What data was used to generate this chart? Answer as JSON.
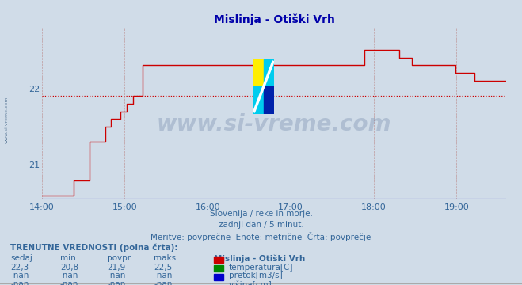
{
  "title": "Mislinja - Otiški Vrh",
  "bg_color": "#d0dce8",
  "plot_bg_color": "#d0dce8",
  "line_color": "#cc0000",
  "avg_line_color": "#cc0000",
  "xaxis_color": "#0000bb",
  "grid_color": "#bb8888",
  "text_color": "#336699",
  "title_color": "#0000aa",
  "ylabel_values": [
    21,
    22
  ],
  "avg_value": 21.9,
  "ymin": 20.55,
  "ymax": 22.78,
  "xmin": 0,
  "xmax": 336,
  "xtick_positions": [
    0,
    60,
    120,
    180,
    240,
    300
  ],
  "xtick_labels": [
    "14:00",
    "15:00",
    "16:00",
    "17:00",
    "18:00",
    "19:00"
  ],
  "subtitle1": "Slovenija / reke in morje.",
  "subtitle2": "zadnji dan / 5 minut.",
  "subtitle3": "Meritve: povprečne  Enote: metrične  Črta: povprečje",
  "table_header": "TRENUTNE VREDNOSTI (polna črta):",
  "col_headers": [
    "sedaj:",
    "min.:",
    "povpr.:",
    "maks.:"
  ],
  "row1": [
    "22,3",
    "20,8",
    "21,9",
    "22,5"
  ],
  "row2": [
    "-nan",
    "-nan",
    "-nan",
    "-nan"
  ],
  "row3": [
    "-nan",
    "-nan",
    "-nan",
    "-nan"
  ],
  "legend_title": "Mislinja - Otiški Vrh",
  "legend_items": [
    "temperatura[C]",
    "pretok[m3/s]",
    "višina[cm]"
  ],
  "legend_colors": [
    "#cc0000",
    "#008800",
    "#0000cc"
  ],
  "watermark_text": "www.si-vreme.com",
  "watermark_color": "#1a3a6e",
  "watermark_alpha": 0.18,
  "sidebar_text": "www.si-vreme.com",
  "sidebar_color": "#446688",
  "temperature_data": [
    20.6,
    20.6,
    20.6,
    20.6,
    20.6,
    20.6,
    20.6,
    20.6,
    20.6,
    20.6,
    20.8,
    20.8,
    20.8,
    20.8,
    20.8,
    21.3,
    21.3,
    21.3,
    21.3,
    21.3,
    21.5,
    21.5,
    21.6,
    21.6,
    21.6,
    21.7,
    21.7,
    21.8,
    21.8,
    21.9,
    21.9,
    21.9,
    22.3,
    22.3,
    22.3,
    22.3,
    22.3,
    22.3,
    22.3,
    22.3,
    22.3,
    22.3,
    22.3,
    22.3,
    22.3,
    22.3,
    22.3,
    22.3,
    22.3,
    22.3,
    22.3,
    22.3,
    22.3,
    22.3,
    22.3,
    22.3,
    22.3,
    22.3,
    22.3,
    22.3,
    22.3,
    22.3,
    22.3,
    22.3,
    22.3,
    22.3,
    22.3,
    22.3,
    22.3,
    22.3,
    22.3,
    22.3,
    22.3,
    22.3,
    22.3,
    22.3,
    22.3,
    22.3,
    22.3,
    22.3,
    22.3,
    22.3,
    22.3,
    22.3,
    22.3,
    22.3,
    22.3,
    22.3,
    22.3,
    22.3,
    22.3,
    22.3,
    22.3,
    22.3,
    22.3,
    22.3,
    22.3,
    22.3,
    22.3,
    22.3,
    22.3,
    22.3,
    22.5,
    22.5,
    22.5,
    22.5,
    22.5,
    22.5,
    22.5,
    22.5,
    22.5,
    22.5,
    22.5,
    22.4,
    22.4,
    22.4,
    22.4,
    22.3,
    22.3,
    22.3,
    22.3,
    22.3,
    22.3,
    22.3,
    22.3,
    22.3,
    22.3,
    22.3,
    22.3,
    22.3,
    22.3,
    22.2,
    22.2,
    22.2,
    22.2,
    22.2,
    22.2,
    22.1,
    22.1,
    22.1,
    22.1,
    22.1,
    22.1,
    22.1,
    22.1,
    22.1,
    22.1,
    22.1
  ]
}
